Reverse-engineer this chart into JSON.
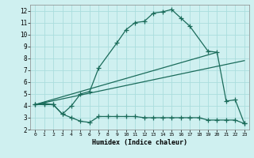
{
  "xlabel": "Humidex (Indice chaleur)",
  "bg_color": "#cff0f0",
  "grid_color": "#aadddd",
  "line_color": "#1a6b5a",
  "line1_x": [
    0,
    1,
    2,
    3,
    4,
    5,
    6,
    7,
    9,
    10,
    11,
    12,
    13,
    14,
    15,
    16,
    17,
    19,
    20,
    21,
    22,
    23
  ],
  "line1_y": [
    4.1,
    4.2,
    4.1,
    3.3,
    4.0,
    5.0,
    5.2,
    7.2,
    9.3,
    10.4,
    11.0,
    11.1,
    11.8,
    11.9,
    12.1,
    11.4,
    10.7,
    8.6,
    8.5,
    4.4,
    4.5,
    2.5
  ],
  "line2_x": [
    0,
    1,
    2,
    3,
    4,
    5,
    6,
    7,
    8,
    9,
    10,
    11,
    12,
    13,
    14,
    15,
    16,
    17,
    18,
    19,
    20,
    21,
    22,
    23
  ],
  "line2_y": [
    4.1,
    4.1,
    4.1,
    3.3,
    3.0,
    2.7,
    2.6,
    3.1,
    3.1,
    3.1,
    3.1,
    3.1,
    3.0,
    3.0,
    3.0,
    3.0,
    3.0,
    3.0,
    3.0,
    2.8,
    2.8,
    2.8,
    2.8,
    2.5
  ],
  "line3_x": [
    0,
    20
  ],
  "line3_y": [
    4.1,
    8.5
  ],
  "line4_x": [
    0,
    23
  ],
  "line4_y": [
    4.1,
    7.8
  ],
  "ylim": [
    2,
    12.5
  ],
  "xlim": [
    -0.5,
    23.5
  ],
  "yticks": [
    2,
    3,
    4,
    5,
    6,
    7,
    8,
    9,
    10,
    11,
    12
  ],
  "xticks": [
    0,
    1,
    2,
    3,
    4,
    5,
    6,
    7,
    8,
    9,
    10,
    11,
    12,
    13,
    14,
    15,
    16,
    17,
    18,
    19,
    20,
    21,
    22,
    23
  ]
}
